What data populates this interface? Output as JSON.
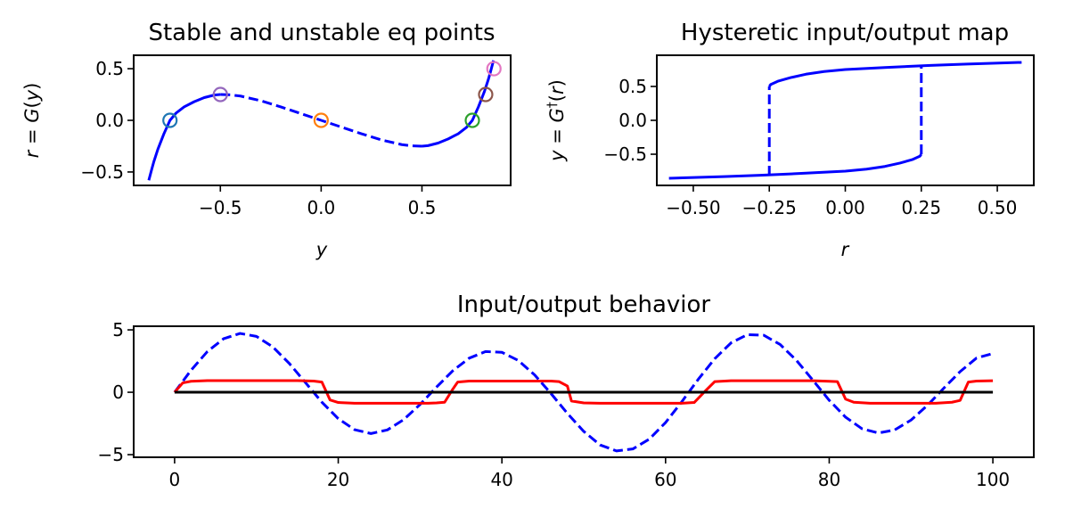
{
  "chart_data": [
    {
      "type": "line",
      "title": "Stable and unstable eq points",
      "xlabel": "y",
      "ylabel": "r = G(y)",
      "ylabel_parts": {
        "lhs": "r",
        "eq": " = ",
        "fn": "G",
        "open": "(",
        "arg": "y",
        "close": ")"
      },
      "xlim": [
        -0.93,
        0.94
      ],
      "ylim": [
        -0.63,
        0.63
      ],
      "xticks": [
        -0.5,
        0.0,
        0.5
      ],
      "xtick_labels": [
        "−0.5",
        "0.0",
        "0.5"
      ],
      "yticks": [
        -0.5,
        0.0,
        0.5
      ],
      "ytick_labels": [
        "−0.5",
        "0.0",
        "0.5"
      ],
      "series": [
        {
          "name": "stable-left",
          "style": "solid",
          "color": "#0000ff",
          "points": [
            [
              -0.855,
              -0.58
            ],
            [
              -0.84,
              -0.47
            ],
            [
              -0.83,
              -0.4
            ],
            [
              -0.81,
              -0.28
            ],
            [
              -0.78,
              -0.13
            ],
            [
              -0.75,
              0.0
            ],
            [
              -0.72,
              0.07
            ],
            [
              -0.68,
              0.13
            ],
            [
              -0.63,
              0.18
            ],
            [
              -0.58,
              0.22
            ],
            [
              -0.53,
              0.245
            ],
            [
              -0.5,
              0.25
            ]
          ]
        },
        {
          "name": "unstable-middle",
          "style": "dashed",
          "color": "#0000ff",
          "points": [
            [
              -0.5,
              0.25
            ],
            [
              -0.45,
              0.247
            ],
            [
              -0.4,
              0.235
            ],
            [
              -0.3,
              0.19
            ],
            [
              -0.2,
              0.13
            ],
            [
              -0.1,
              0.065
            ],
            [
              0.0,
              0.0
            ],
            [
              0.1,
              -0.065
            ],
            [
              0.2,
              -0.13
            ],
            [
              0.3,
              -0.19
            ],
            [
              0.4,
              -0.235
            ],
            [
              0.45,
              -0.247
            ],
            [
              0.5,
              -0.25
            ]
          ]
        },
        {
          "name": "stable-right",
          "style": "solid",
          "color": "#0000ff",
          "points": [
            [
              0.5,
              -0.25
            ],
            [
              0.53,
              -0.245
            ],
            [
              0.58,
              -0.22
            ],
            [
              0.63,
              -0.18
            ],
            [
              0.68,
              -0.13
            ],
            [
              0.72,
              -0.07
            ],
            [
              0.75,
              0.0
            ],
            [
              0.78,
              0.13
            ],
            [
              0.81,
              0.28
            ],
            [
              0.83,
              0.4
            ],
            [
              0.84,
              0.47
            ],
            [
              0.855,
              0.58
            ]
          ]
        }
      ],
      "markers": [
        {
          "x": -0.75,
          "y": 0.0,
          "color": "#1f77b4"
        },
        {
          "x": 0.0,
          "y": 0.0,
          "color": "#ff7f0e"
        },
        {
          "x": 0.75,
          "y": 0.0,
          "color": "#2ca02c"
        },
        {
          "x": -0.5,
          "y": 0.25,
          "color": "#9467bd"
        },
        {
          "x": 0.816,
          "y": 0.25,
          "color": "#8c564b"
        },
        {
          "x": 0.857,
          "y": 0.5,
          "color": "#e377c2"
        }
      ]
    },
    {
      "type": "line",
      "title": "Hysteretic input/output map",
      "xlabel": "r",
      "ylabel": "y = G†(r)",
      "ylabel_parts": {
        "lhs": "y",
        "eq": " = ",
        "fn": "G",
        "sup": "†",
        "open": "(",
        "arg": "r",
        "close": ")"
      },
      "xlim": [
        -0.62,
        0.62
      ],
      "ylim": [
        -0.96,
        0.96
      ],
      "xticks": [
        -0.5,
        -0.25,
        0.0,
        0.25,
        0.5
      ],
      "xtick_labels": [
        "−0.50",
        "−0.25",
        "0.00",
        "0.25",
        "0.50"
      ],
      "yticks": [
        -0.5,
        0.0,
        0.5
      ],
      "ytick_labels": [
        "−0.5",
        "0.0",
        "0.5"
      ],
      "series": [
        {
          "name": "lower-branch",
          "style": "solid",
          "color": "#0000ff",
          "points": [
            [
              -0.58,
              -0.855
            ],
            [
              -0.4,
              -0.83
            ],
            [
              -0.28,
              -0.81
            ],
            [
              -0.13,
              -0.78
            ],
            [
              0.0,
              -0.75
            ],
            [
              0.07,
              -0.72
            ],
            [
              0.13,
              -0.68
            ],
            [
              0.18,
              -0.63
            ],
            [
              0.22,
              -0.58
            ],
            [
              0.245,
              -0.53
            ],
            [
              0.25,
              -0.5
            ]
          ]
        },
        {
          "name": "upper-branch",
          "style": "solid",
          "color": "#0000ff",
          "points": [
            [
              -0.25,
              0.5
            ],
            [
              -0.245,
              0.53
            ],
            [
              -0.22,
              0.58
            ],
            [
              -0.18,
              0.63
            ],
            [
              -0.13,
              0.68
            ],
            [
              -0.07,
              0.72
            ],
            [
              0.0,
              0.75
            ],
            [
              0.13,
              0.78
            ],
            [
              0.28,
              0.81
            ],
            [
              0.4,
              0.83
            ],
            [
              0.47,
              0.84
            ],
            [
              0.58,
              0.855
            ]
          ]
        },
        {
          "name": "jump-up",
          "style": "dashed",
          "color": "#0000ff",
          "points": [
            [
              0.25,
              -0.5
            ],
            [
              0.25,
              0.816
            ]
          ]
        },
        {
          "name": "jump-down",
          "style": "dashed",
          "color": "#0000ff",
          "points": [
            [
              -0.25,
              -0.816
            ],
            [
              -0.25,
              0.5
            ]
          ]
        }
      ]
    },
    {
      "type": "line",
      "title": "Input/output behavior",
      "xlabel": "",
      "ylabel": "",
      "xlim": [
        -5,
        105
      ],
      "ylim": [
        -5.21,
        5.29
      ],
      "xticks": [
        0,
        20,
        40,
        60,
        80,
        100
      ],
      "xtick_labels": [
        "0",
        "20",
        "40",
        "60",
        "80",
        "100"
      ],
      "yticks": [
        -5,
        0,
        5
      ],
      "ytick_labels": [
        "−5",
        "0",
        "5"
      ],
      "series": [
        {
          "name": "input-r",
          "style": "dashed",
          "color": "#0000ff",
          "x_start": 0,
          "x_step": 2,
          "values": [
            0,
            1.757,
            3.259,
            4.293,
            4.716,
            4.479,
            3.634,
            2.325,
            0.766,
            -0.796,
            -2.118,
            -2.998,
            -3.309,
            -3.018,
            -2.19,
            -0.977,
            0.408,
            1.721,
            2.732,
            3.26,
            3.201,
            2.547,
            1.388,
            -0.102,
            -1.693,
            -3.135,
            -4.222,
            -4.7,
            -4.543,
            -3.761,
            -2.426,
            -0.745,
            1.043,
            2.68,
            3.958,
            4.619,
            4.569,
            3.827,
            2.55,
            0.971,
            -0.643,
            -1.998,
            -2.919,
            -3.266,
            -3.021,
            -2.229,
            -1.052,
            0.326,
            1.656,
            2.74,
            3.108
          ]
        },
        {
          "name": "output-y",
          "style": "solid",
          "color": "#ff0000",
          "points": [
            [
              0,
              0
            ],
            [
              1,
              0.75
            ],
            [
              2,
              0.88
            ],
            [
              4,
              0.93
            ],
            [
              15,
              0.93
            ],
            [
              17,
              0.9
            ],
            [
              18,
              0.82
            ],
            [
              19,
              -0.62
            ],
            [
              20,
              -0.82
            ],
            [
              22,
              -0.88
            ],
            [
              31,
              -0.88
            ],
            [
              32,
              -0.85
            ],
            [
              33,
              -0.8
            ],
            [
              34,
              0.25
            ],
            [
              34.6,
              0.82
            ],
            [
              36,
              0.9
            ],
            [
              46,
              0.9
            ],
            [
              47,
              0.85
            ],
            [
              48,
              0.5
            ],
            [
              48.5,
              -0.7
            ],
            [
              50,
              -0.85
            ],
            [
              52,
              -0.88
            ],
            [
              62,
              -0.88
            ],
            [
              63.5,
              -0.82
            ],
            [
              65,
              0.2
            ],
            [
              66,
              0.85
            ],
            [
              68,
              0.92
            ],
            [
              78,
              0.92
            ],
            [
              80,
              0.88
            ],
            [
              81,
              0.85
            ],
            [
              82,
              -0.55
            ],
            [
              83,
              -0.8
            ],
            [
              85,
              -0.88
            ],
            [
              93,
              -0.88
            ],
            [
              95,
              -0.8
            ],
            [
              96,
              -0.65
            ],
            [
              97,
              0.82
            ],
            [
              98,
              0.9
            ],
            [
              100,
              0.92
            ]
          ]
        },
        {
          "name": "zero-line",
          "style": "solid",
          "color": "#000000",
          "points": [
            [
              0,
              0
            ],
            [
              100,
              0
            ]
          ]
        }
      ]
    }
  ]
}
